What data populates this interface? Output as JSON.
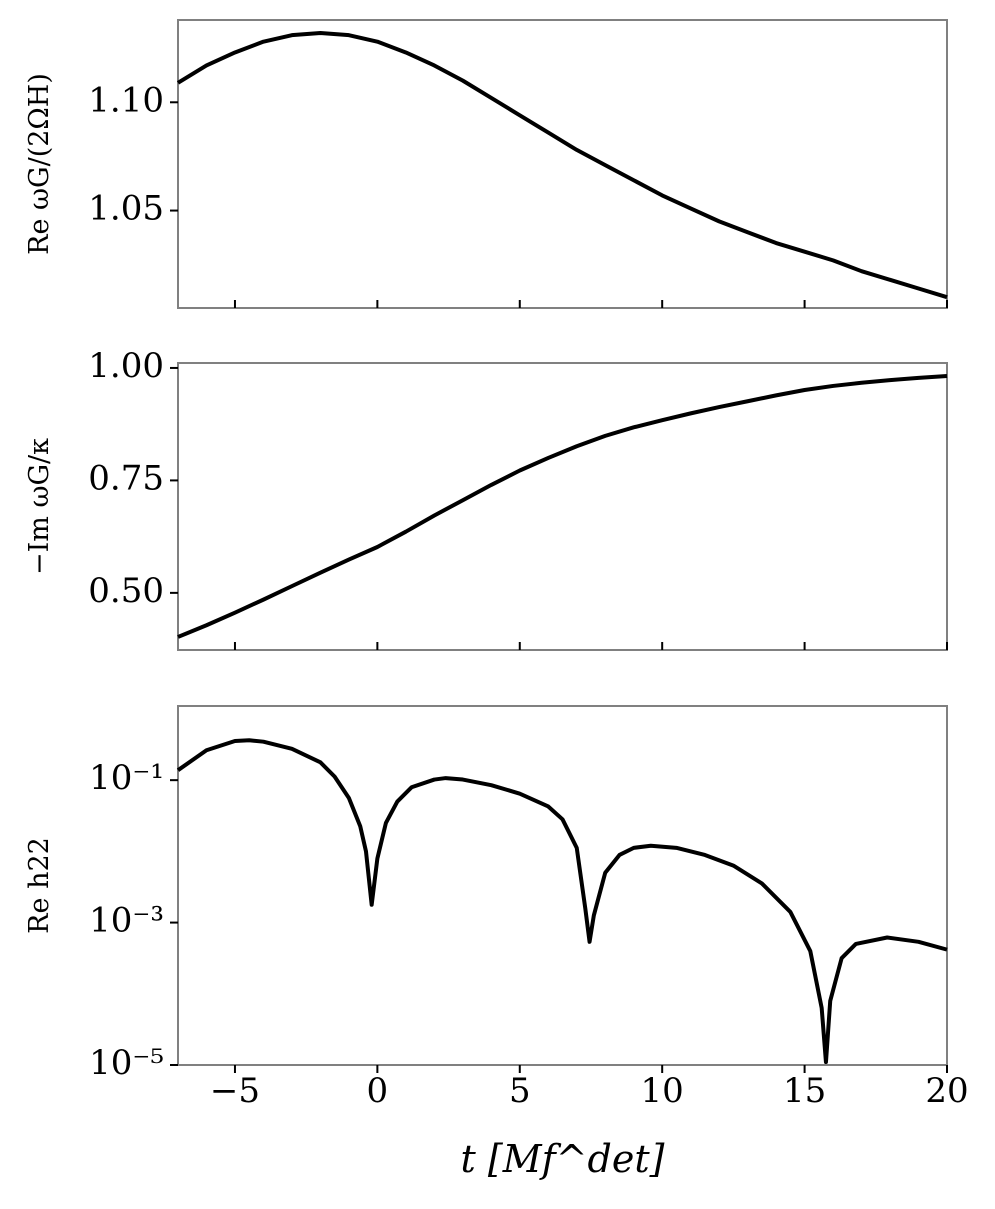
{
  "chart_data": [
    {
      "type": "line",
      "ylabel": "Re ωG/(2ΩH)",
      "x": [
        -7,
        -6,
        -5,
        -4,
        -3,
        -2,
        -1,
        0,
        1,
        2,
        3,
        4,
        5,
        6,
        7,
        8,
        9,
        10,
        11,
        12,
        13,
        14,
        15,
        16,
        17,
        18,
        19,
        20
      ],
      "series": [
        {
          "name": "Re ωG/(2ΩH)",
          "color": "#000000",
          "values": [
            1.109,
            1.117,
            1.123,
            1.128,
            1.131,
            1.132,
            1.131,
            1.128,
            1.123,
            1.117,
            1.11,
            1.102,
            1.094,
            1.086,
            1.078,
            1.071,
            1.064,
            1.057,
            1.051,
            1.045,
            1.04,
            1.035,
            1.031,
            1.027,
            1.022,
            1.018,
            1.014,
            1.01
          ]
        }
      ],
      "xlim": [
        -7,
        20
      ],
      "xticks": [
        {
          "value": -5,
          "label": "−5"
        },
        0,
        5,
        10,
        15,
        20
      ],
      "ylim": [
        1.005,
        1.138
      ],
      "yticks": [
        1.05,
        {
          "value": 1.1,
          "label": "1.10"
        }
      ],
      "log_y": false
    },
    {
      "type": "line",
      "ylabel": "−Im ωG/κ",
      "x": [
        -7,
        -6,
        -5,
        -4,
        -3,
        -2,
        -1,
        0,
        1,
        2,
        3,
        4,
        5,
        6,
        7,
        8,
        9,
        10,
        11,
        12,
        13,
        14,
        15,
        16,
        17,
        18,
        19,
        20
      ],
      "series": [
        {
          "name": "−Im ωG/κ",
          "color": "#000000",
          "values": [
            0.402,
            0.428,
            0.456,
            0.485,
            0.515,
            0.545,
            0.574,
            0.602,
            0.636,
            0.672,
            0.706,
            0.74,
            0.772,
            0.8,
            0.826,
            0.849,
            0.868,
            0.884,
            0.899,
            0.913,
            0.926,
            0.939,
            0.951,
            0.96,
            0.967,
            0.973,
            0.978,
            0.982
          ]
        }
      ],
      "xlim": [
        -7,
        20
      ],
      "xticks": [
        {
          "value": -5,
          "label": "−5"
        },
        0,
        5,
        10,
        15,
        20
      ],
      "ylim": [
        0.373,
        1.011
      ],
      "yticks": [
        {
          "value": 0.5,
          "label": "0.50"
        },
        0.75,
        {
          "value": 1.0,
          "label": "1.00"
        }
      ],
      "log_y": false
    },
    {
      "type": "line",
      "ylabel": "Re h22",
      "xlabel": "t [Mf^det]",
      "x": [
        -7,
        -6,
        -5,
        -4.5,
        -4,
        -3,
        -2,
        -1.5,
        -1,
        -0.6,
        -0.4,
        -0.2,
        0,
        0.3,
        0.7,
        1.2,
        2,
        2.4,
        3,
        4,
        5,
        6,
        6.5,
        7,
        7.3,
        7.45,
        7.6,
        8,
        8.5,
        9,
        9.6,
        10.5,
        11.5,
        12.5,
        13.5,
        14.5,
        15.2,
        15.6,
        15.75,
        15.9,
        16.3,
        16.8,
        17.9,
        19,
        20
      ],
      "series": [
        {
          "name": "Re h22",
          "color": "#000000",
          "values": [
            0.138,
            0.263,
            0.355,
            0.363,
            0.347,
            0.275,
            0.178,
            0.112,
            0.0562,
            0.0224,
            0.01,
            0.00178,
            0.00794,
            0.0251,
            0.0501,
            0.0794,
            0.102,
            0.107,
            0.102,
            0.0851,
            0.0646,
            0.0427,
            0.0282,
            0.0112,
            0.00158,
            0.000537,
            0.00126,
            0.00501,
            0.00891,
            0.0112,
            0.012,
            0.0112,
            0.00891,
            0.00631,
            0.00355,
            0.00141,
            0.000398,
            6.31e-05,
            1.1e-05,
            7.94e-05,
            0.000316,
            0.000501,
            0.000617,
            0.000537,
            0.000417
          ]
        }
      ],
      "xlim": [
        -7,
        20
      ],
      "xticks": [
        {
          "value": -5,
          "label": "−5"
        },
        0,
        5,
        10,
        15,
        20
      ],
      "ylim": [
        1e-05,
        1.1
      ],
      "yticks": [
        {
          "value": 1e-05,
          "label": "10⁻⁵"
        },
        {
          "value": 0.001,
          "label": "10⁻³"
        },
        {
          "value": 0.1,
          "label": "10⁻¹"
        }
      ],
      "log_y": true
    }
  ]
}
